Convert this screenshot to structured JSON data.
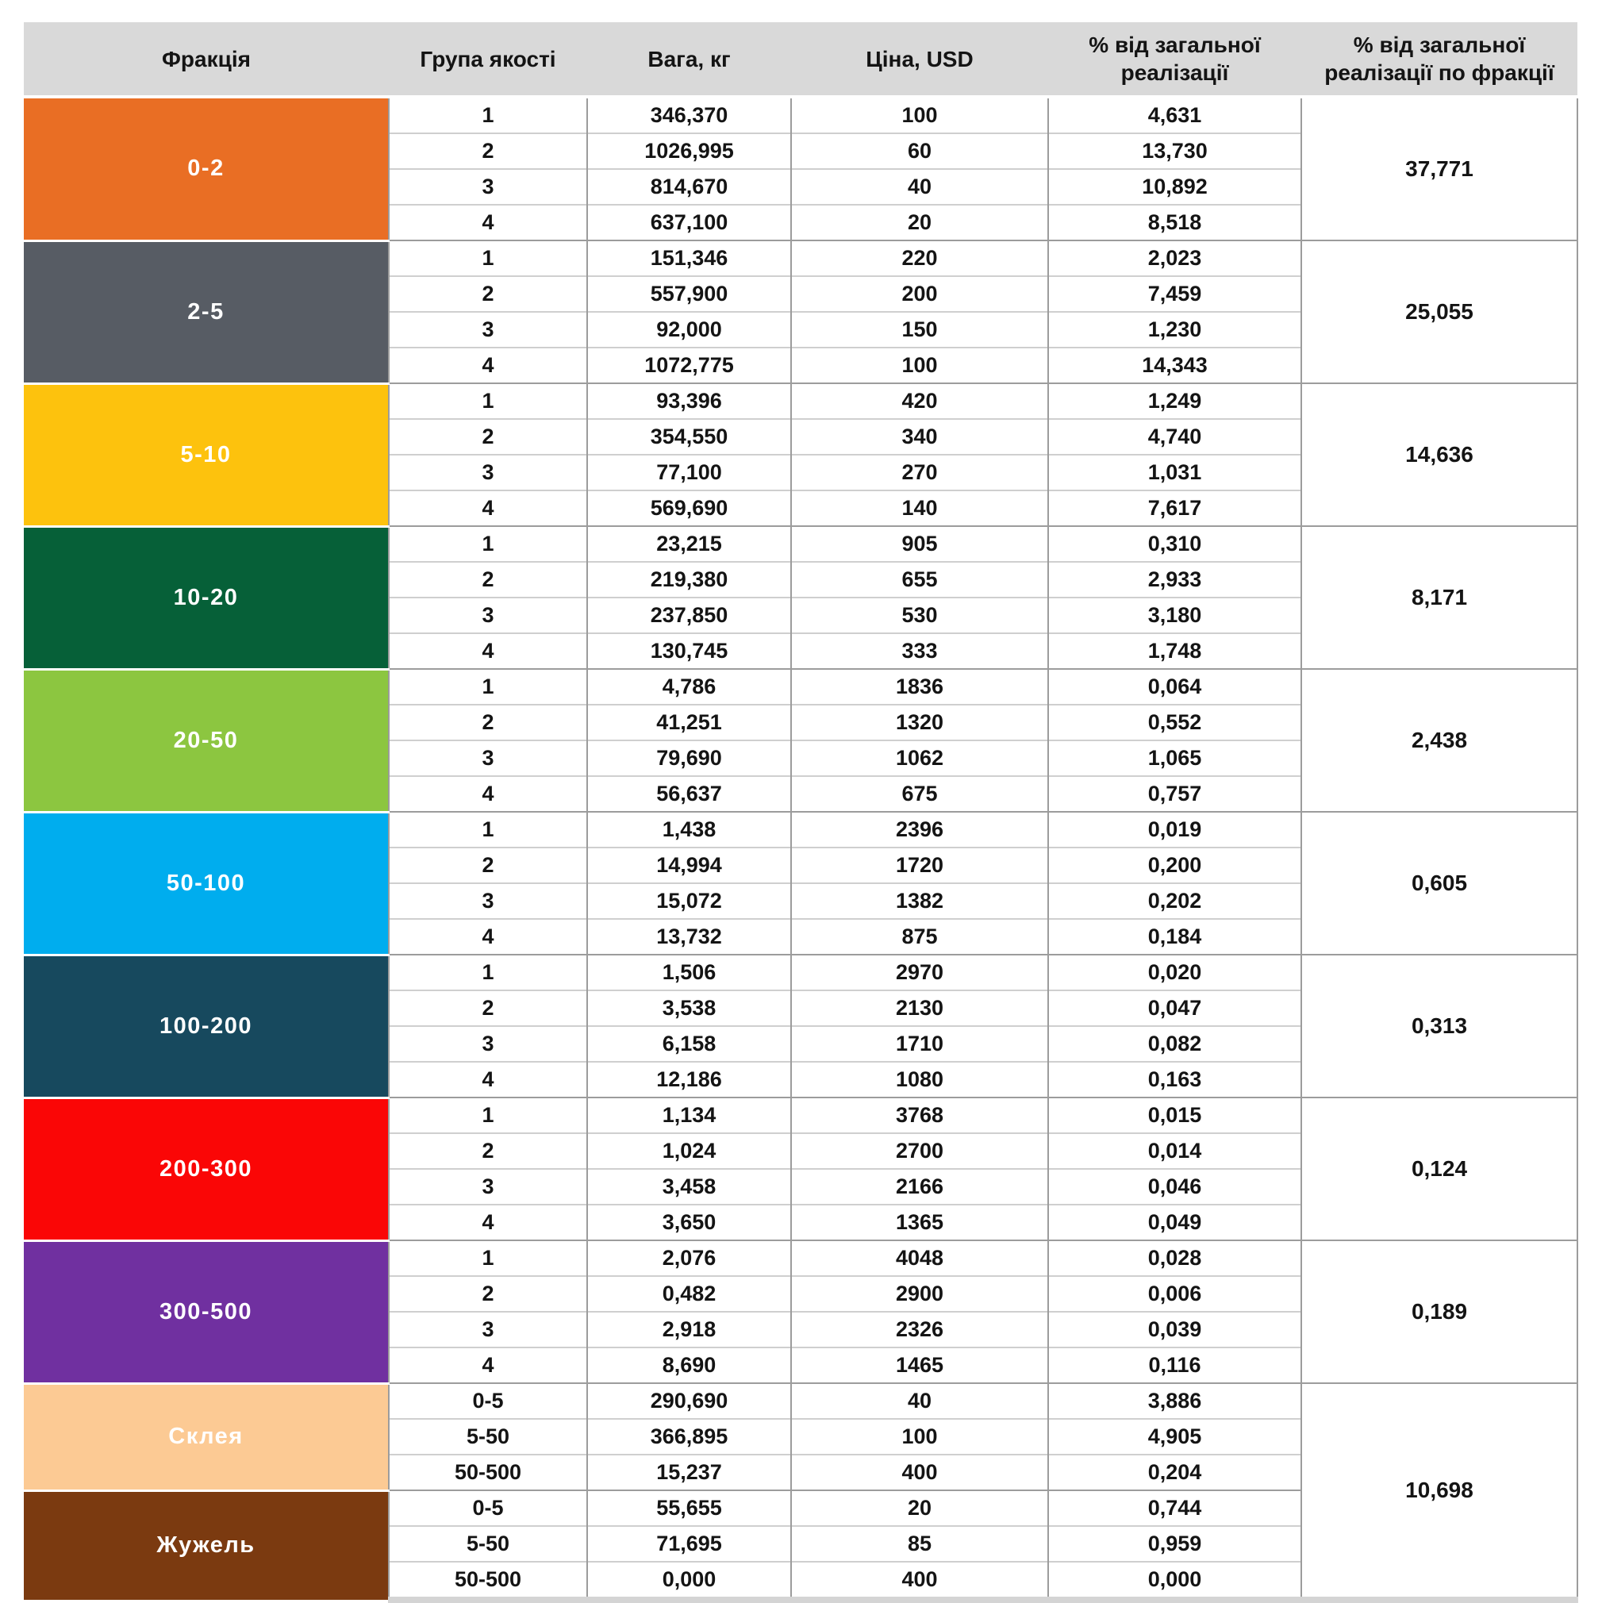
{
  "styles": {
    "header_bg": "#D9D9D9",
    "grid_line": "#9C9C9C",
    "row_line": "#CFCFCF",
    "bottom_band": "#D4D4D4"
  },
  "chart_data": {
    "type": "table",
    "columns": [
      "Фракція",
      "Група якості",
      "Вага, кг",
      "Ціна, USD",
      "% від загальної реалізації",
      "% від загальної реалізації по фракції"
    ],
    "fractions": [
      {
        "label": "0-2",
        "color": "#E96E24",
        "text_color": "#FFFFFF",
        "rows": [
          {
            "group": "1",
            "weight": "346,370",
            "price": "100",
            "share": "4,631"
          },
          {
            "group": "2",
            "weight": "1026,995",
            "price": "60",
            "share": "13,730"
          },
          {
            "group": "3",
            "weight": "814,670",
            "price": "40",
            "share": "10,892"
          },
          {
            "group": "4",
            "weight": "637,100",
            "price": "20",
            "share": "8,518"
          }
        ],
        "total": "37,771"
      },
      {
        "label": "2-5",
        "color": "#575C64",
        "text_color": "#FFFFFF",
        "rows": [
          {
            "group": "1",
            "weight": "151,346",
            "price": "220",
            "share": "2,023"
          },
          {
            "group": "2",
            "weight": "557,900",
            "price": "200",
            "share": "7,459"
          },
          {
            "group": "3",
            "weight": "92,000",
            "price": "150",
            "share": "1,230"
          },
          {
            "group": "4",
            "weight": "1072,775",
            "price": "100",
            "share": "14,343"
          }
        ],
        "total": "25,055"
      },
      {
        "label": "5-10",
        "color": "#FDC20D",
        "text_color": "#FFFFFF",
        "rows": [
          {
            "group": "1",
            "weight": "93,396",
            "price": "420",
            "share": "1,249"
          },
          {
            "group": "2",
            "weight": "354,550",
            "price": "340",
            "share": "4,740"
          },
          {
            "group": "3",
            "weight": "77,100",
            "price": "270",
            "share": "1,031"
          },
          {
            "group": "4",
            "weight": "569,690",
            "price": "140",
            "share": "7,617"
          }
        ],
        "total": "14,636"
      },
      {
        "label": "10-20",
        "color": "#066038",
        "text_color": "#FFFFFF",
        "rows": [
          {
            "group": "1",
            "weight": "23,215",
            "price": "905",
            "share": "0,310"
          },
          {
            "group": "2",
            "weight": "219,380",
            "price": "655",
            "share": "2,933"
          },
          {
            "group": "3",
            "weight": "237,850",
            "price": "530",
            "share": "3,180"
          },
          {
            "group": "4",
            "weight": "130,745",
            "price": "333",
            "share": "1,748"
          }
        ],
        "total": "8,171"
      },
      {
        "label": "20-50",
        "color": "#8CC640",
        "text_color": "#FFFFFF",
        "rows": [
          {
            "group": "1",
            "weight": "4,786",
            "price": "1836",
            "share": "0,064"
          },
          {
            "group": "2",
            "weight": "41,251",
            "price": "1320",
            "share": "0,552"
          },
          {
            "group": "3",
            "weight": "79,690",
            "price": "1062",
            "share": "1,065"
          },
          {
            "group": "4",
            "weight": "56,637",
            "price": "675",
            "share": "0,757"
          }
        ],
        "total": "2,438"
      },
      {
        "label": "50-100",
        "color": "#00ADEE",
        "text_color": "#FFFFFF",
        "rows": [
          {
            "group": "1",
            "weight": "1,438",
            "price": "2396",
            "share": "0,019"
          },
          {
            "group": "2",
            "weight": "14,994",
            "price": "1720",
            "share": "0,200"
          },
          {
            "group": "3",
            "weight": "15,072",
            "price": "1382",
            "share": "0,202"
          },
          {
            "group": "4",
            "weight": "13,732",
            "price": "875",
            "share": "0,184"
          }
        ],
        "total": "0,605"
      },
      {
        "label": "100-200",
        "color": "#17495E",
        "text_color": "#FFFFFF",
        "rows": [
          {
            "group": "1",
            "weight": "1,506",
            "price": "2970",
            "share": "0,020"
          },
          {
            "group": "2",
            "weight": "3,538",
            "price": "2130",
            "share": "0,047"
          },
          {
            "group": "3",
            "weight": "6,158",
            "price": "1710",
            "share": "0,082"
          },
          {
            "group": "4",
            "weight": "12,186",
            "price": "1080",
            "share": "0,163"
          }
        ],
        "total": "0,313"
      },
      {
        "label": "200-300",
        "color": "#FA0606",
        "text_color": "#FFFFFF",
        "rows": [
          {
            "group": "1",
            "weight": "1,134",
            "price": "3768",
            "share": "0,015"
          },
          {
            "group": "2",
            "weight": "1,024",
            "price": "2700",
            "share": "0,014"
          },
          {
            "group": "3",
            "weight": "3,458",
            "price": "2166",
            "share": "0,046"
          },
          {
            "group": "4",
            "weight": "3,650",
            "price": "1365",
            "share": "0,049"
          }
        ],
        "total": "0,124"
      },
      {
        "label": "300-500",
        "color": "#7030A0",
        "text_color": "#FFFFFF",
        "rows": [
          {
            "group": "1",
            "weight": "2,076",
            "price": "4048",
            "share": "0,028"
          },
          {
            "group": "2",
            "weight": "0,482",
            "price": "2900",
            "share": "0,006"
          },
          {
            "group": "3",
            "weight": "2,918",
            "price": "2326",
            "share": "0,039"
          },
          {
            "group": "4",
            "weight": "8,690",
            "price": "1465",
            "share": "0,116"
          }
        ],
        "total": "0,189"
      },
      {
        "label": "Склея",
        "color": "#FCCA94",
        "text_color": "#FFFFFF",
        "rows": [
          {
            "group": "0-5",
            "weight": "290,690",
            "price": "40",
            "share": "3,886"
          },
          {
            "group": "5-50",
            "weight": "366,895",
            "price": "100",
            "share": "4,905"
          },
          {
            "group": "50-500",
            "weight": "15,237",
            "price": "400",
            "share": "0,204"
          }
        ],
        "total": "10,698",
        "total_rowspan": 6
      },
      {
        "label": "Жужель",
        "color": "#7B3A10",
        "text_color": "#FFFFFF",
        "rows": [
          {
            "group": "0-5",
            "weight": "55,655",
            "price": "20",
            "share": "0,744"
          },
          {
            "group": "5-50",
            "weight": "71,695",
            "price": "85",
            "share": "0,959"
          },
          {
            "group": "50-500",
            "weight": "0,000",
            "price": "400",
            "share": "0,000"
          }
        ],
        "total": null
      }
    ]
  }
}
